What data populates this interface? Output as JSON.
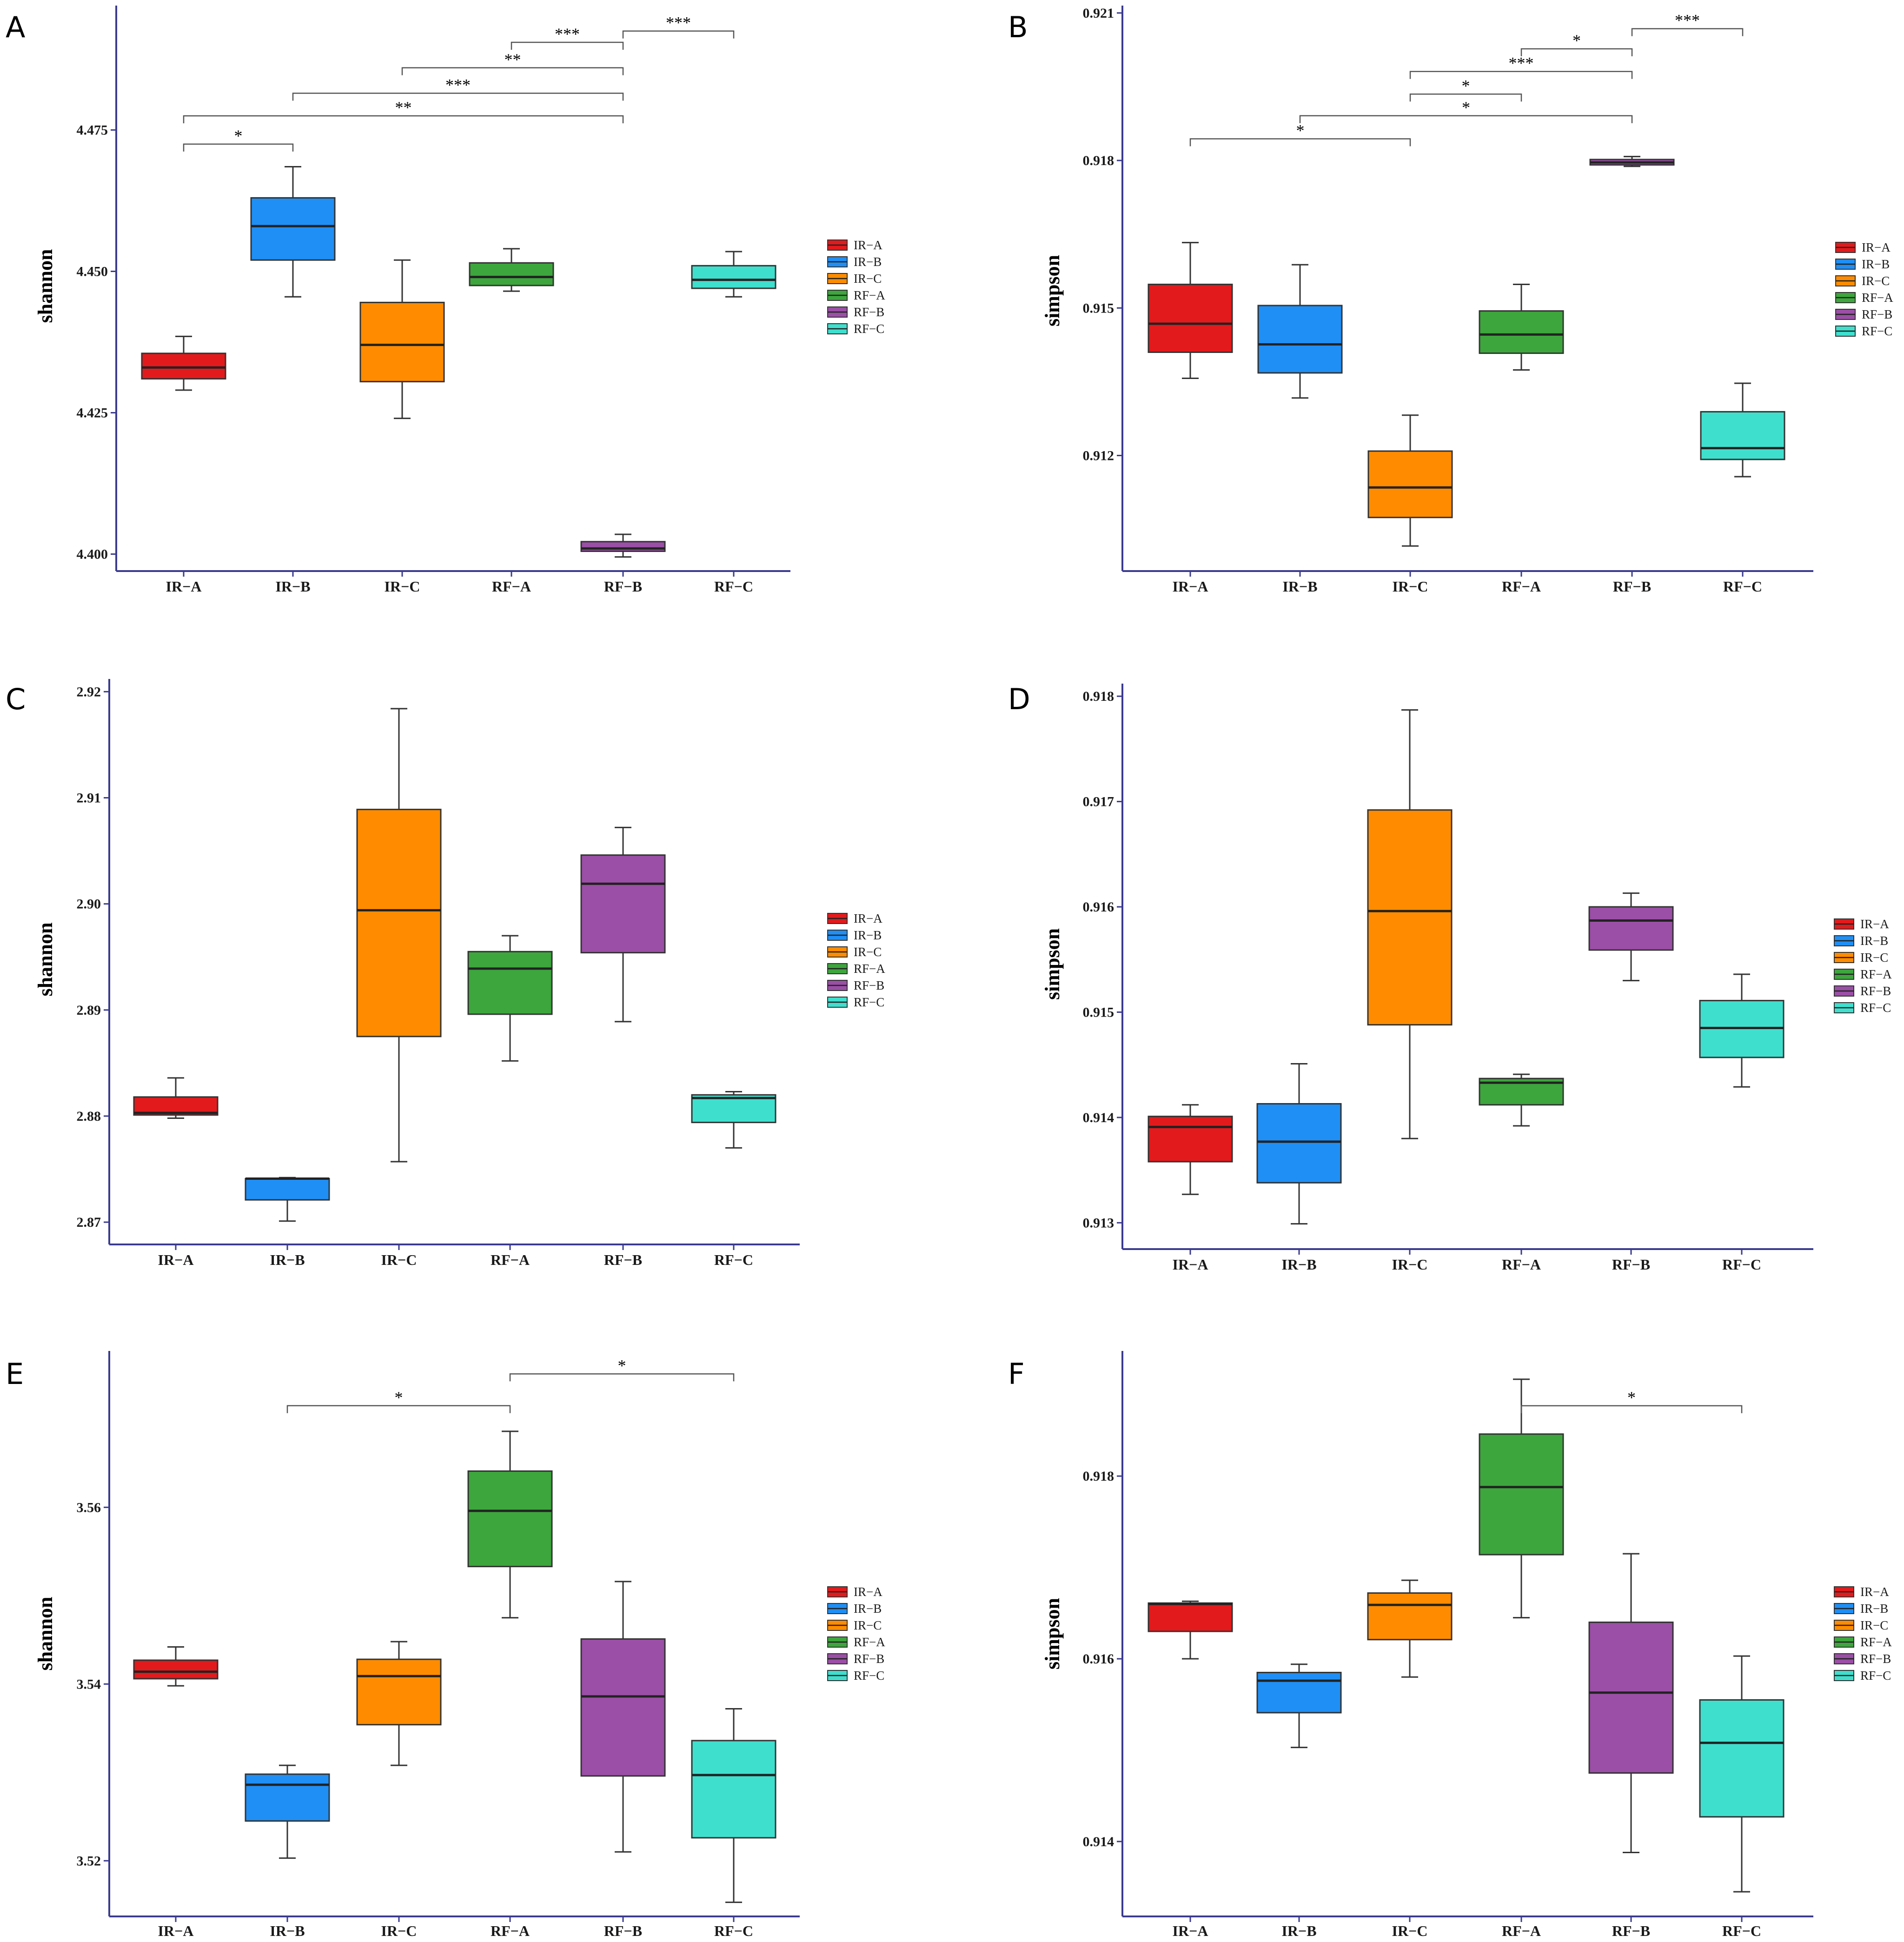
{
  "chart_data": [
    {
      "type": "box",
      "panel": "A",
      "ylabel": "shannon",
      "categories": [
        "IR−A",
        "IR−B",
        "IR−C",
        "RF−A",
        "RF−B",
        "RF−C"
      ],
      "colors": [
        "#e31a1c",
        "#1f8ff5",
        "#ff8c00",
        "#3da63d",
        "#9b4fa6",
        "#3fdfce"
      ],
      "ylim": [
        4.397,
        4.497
      ],
      "yticks": [
        4.4,
        4.425,
        4.45,
        4.475
      ],
      "ytick_labels": [
        "4.400",
        "4.425",
        "4.450",
        "4.475"
      ],
      "boxes": [
        {
          "whisker_low": 4.429,
          "q1": 4.431,
          "median": 4.433,
          "q3": 4.4355,
          "whisker_high": 4.4385
        },
        {
          "whisker_low": 4.4455,
          "q1": 4.452,
          "median": 4.458,
          "q3": 4.463,
          "whisker_high": 4.4685
        },
        {
          "whisker_low": 4.424,
          "q1": 4.4305,
          "median": 4.437,
          "q3": 4.4445,
          "whisker_high": 4.452
        },
        {
          "whisker_low": 4.4465,
          "q1": 4.4475,
          "median": 4.449,
          "q3": 4.4515,
          "whisker_high": 4.454
        },
        {
          "whisker_low": 4.3995,
          "q1": 4.4005,
          "median": 4.401,
          "q3": 4.4022,
          "whisker_high": 4.4035
        },
        {
          "whisker_low": 4.4455,
          "q1": 4.447,
          "median": 4.4485,
          "q3": 4.451,
          "whisker_high": 4.4535
        }
      ],
      "significance": [
        {
          "from": 0,
          "to": 1,
          "label": "*",
          "y": 4.4725
        },
        {
          "from": 0,
          "to": 4,
          "label": "**",
          "y": 4.4775
        },
        {
          "from": 1,
          "to": 4,
          "label": "***",
          "y": 4.4815
        },
        {
          "from": 2,
          "to": 4,
          "label": "**",
          "y": 4.486
        },
        {
          "from": 3,
          "to": 4,
          "label": "***",
          "y": 4.4905
        },
        {
          "from": 4,
          "to": 5,
          "label": "***",
          "y": 4.4925
        }
      ],
      "legend": [
        "IR−A",
        "IR−B",
        "IR−C",
        "RF−A",
        "RF−B",
        "RF−C"
      ]
    },
    {
      "type": "box",
      "panel": "B",
      "ylabel": "simpson",
      "categories": [
        "IR−A",
        "IR−B",
        "IR−C",
        "RF−A",
        "RF−B",
        "RF−C"
      ],
      "colors": [
        "#e31a1c",
        "#1f8ff5",
        "#ff8c00",
        "#3da63d",
        "#9b4fa6",
        "#3fdfce"
      ],
      "ylim": [
        0.90965,
        0.92115
      ],
      "yticks": [
        0.912,
        0.915,
        0.918,
        0.921
      ],
      "ytick_labels": [
        "0.912",
        "0.915",
        "0.918",
        "0.921"
      ],
      "boxes": [
        {
          "whisker_low": 0.91357,
          "q1": 0.9141,
          "median": 0.91468,
          "q3": 0.91548,
          "whisker_high": 0.91633
        },
        {
          "whisker_low": 0.91317,
          "q1": 0.91368,
          "median": 0.91426,
          "q3": 0.91505,
          "whisker_high": 0.91588
        },
        {
          "whisker_low": 0.91016,
          "q1": 0.91074,
          "median": 0.91135,
          "q3": 0.91209,
          "whisker_high": 0.91282
        },
        {
          "whisker_low": 0.91374,
          "q1": 0.91408,
          "median": 0.91446,
          "q3": 0.91494,
          "whisker_high": 0.91548
        },
        {
          "whisker_low": 0.91788,
          "q1": 0.91791,
          "median": 0.91796,
          "q3": 0.91802,
          "whisker_high": 0.91808
        },
        {
          "whisker_low": 0.91157,
          "q1": 0.91192,
          "median": 0.91215,
          "q3": 0.91289,
          "whisker_high": 0.91347
        }
      ],
      "significance": [
        {
          "from": 0,
          "to": 2,
          "label": "*",
          "y": 0.91844
        },
        {
          "from": 1,
          "to": 4,
          "label": "*",
          "y": 0.91891
        },
        {
          "from": 2,
          "to": 3,
          "label": "*",
          "y": 0.91935
        },
        {
          "from": 2,
          "to": 4,
          "label": "***",
          "y": 0.91981
        },
        {
          "from": 3,
          "to": 4,
          "label": "*",
          "y": 0.92027
        },
        {
          "from": 4,
          "to": 5,
          "label": "***",
          "y": 0.92068
        }
      ],
      "legend": [
        "IR−A",
        "IR−B",
        "IR−C",
        "RF−A",
        "RF−B",
        "RF−C"
      ]
    },
    {
      "type": "box",
      "panel": "C",
      "ylabel": "shannon",
      "categories": [
        "IR−A",
        "IR−B",
        "IR−C",
        "RF−A",
        "RF−B",
        "RF−C"
      ],
      "colors": [
        "#e31a1c",
        "#1f8ff5",
        "#ff8c00",
        "#3da63d",
        "#9b4fa6",
        "#3fdfce"
      ],
      "ylim": [
        2.8679,
        2.9212
      ],
      "yticks": [
        2.87,
        2.88,
        2.89,
        2.9,
        2.91,
        2.92
      ],
      "ytick_labels": [
        "2.87",
        "2.88",
        "2.89",
        "2.90",
        "2.91",
        "2.92"
      ],
      "boxes": [
        {
          "whisker_low": 2.8798,
          "q1": 2.8801,
          "median": 2.8803,
          "q3": 2.8818,
          "whisker_high": 2.8836
        },
        {
          "whisker_low": 2.8701,
          "q1": 2.8721,
          "median": 2.8741,
          "q3": 2.8741,
          "whisker_high": 2.8742
        },
        {
          "whisker_low": 2.8757,
          "q1": 2.8875,
          "median": 2.8994,
          "q3": 2.9089,
          "whisker_high": 2.9184
        },
        {
          "whisker_low": 2.8852,
          "q1": 2.8896,
          "median": 2.8939,
          "q3": 2.8955,
          "whisker_high": 2.897
        },
        {
          "whisker_low": 2.8889,
          "q1": 2.8954,
          "median": 2.9019,
          "q3": 2.9046,
          "whisker_high": 2.9072
        },
        {
          "whisker_low": 2.877,
          "q1": 2.8794,
          "median": 2.8817,
          "q3": 2.882,
          "whisker_high": 2.8823
        }
      ],
      "significance": [],
      "legend": [
        "IR−A",
        "IR−B",
        "IR−C",
        "RF−A",
        "RF−B",
        "RF−C"
      ]
    },
    {
      "type": "box",
      "panel": "D",
      "ylabel": "simpson",
      "categories": [
        "IR−A",
        "IR−B",
        "IR−C",
        "RF−A",
        "RF−B",
        "RF−C"
      ],
      "colors": [
        "#e31a1c",
        "#1f8ff5",
        "#ff8c00",
        "#3da63d",
        "#9b4fa6",
        "#3fdfce"
      ],
      "ylim": [
        0.91275,
        0.91812
      ],
      "yticks": [
        0.913,
        0.914,
        0.915,
        0.916,
        0.917,
        0.918
      ],
      "ytick_labels": [
        "0.913",
        "0.914",
        "0.915",
        "0.916",
        "0.917",
        "0.918"
      ],
      "boxes": [
        {
          "whisker_low": 0.91327,
          "q1": 0.91358,
          "median": 0.91391,
          "q3": 0.91401,
          "whisker_high": 0.91412
        },
        {
          "whisker_low": 0.91299,
          "q1": 0.91338,
          "median": 0.91377,
          "q3": 0.91413,
          "whisker_high": 0.91451
        },
        {
          "whisker_low": 0.9138,
          "q1": 0.91488,
          "median": 0.91596,
          "q3": 0.91692,
          "whisker_high": 0.91787
        },
        {
          "whisker_low": 0.91392,
          "q1": 0.91412,
          "median": 0.91433,
          "q3": 0.91437,
          "whisker_high": 0.91441
        },
        {
          "whisker_low": 0.9153,
          "q1": 0.91559,
          "median": 0.91587,
          "q3": 0.916,
          "whisker_high": 0.91613
        },
        {
          "whisker_low": 0.91429,
          "q1": 0.91457,
          "median": 0.91485,
          "q3": 0.91511,
          "whisker_high": 0.91536
        }
      ],
      "significance": [],
      "legend": [
        "IR−A",
        "IR−B",
        "IR−C",
        "RF−A",
        "RF−B",
        "RF−C"
      ]
    },
    {
      "type": "box",
      "panel": "E",
      "ylabel": "shannon",
      "categories": [
        "IR−A",
        "IR−B",
        "IR−C",
        "RF−A",
        "RF−B",
        "RF−C"
      ],
      "colors": [
        "#e31a1c",
        "#1f8ff5",
        "#ff8c00",
        "#3da63d",
        "#9b4fa6",
        "#3fdfce"
      ],
      "ylim": [
        3.5137,
        3.5777
      ],
      "yticks": [
        3.52,
        3.54,
        3.56
      ],
      "ytick_labels": [
        "3.52",
        "3.54",
        "3.56"
      ],
      "boxes": [
        {
          "whisker_low": 3.5398,
          "q1": 3.5406,
          "median": 3.5414,
          "q3": 3.5427,
          "whisker_high": 3.5442
        },
        {
          "whisker_low": 3.5203,
          "q1": 3.5245,
          "median": 3.5286,
          "q3": 3.5298,
          "whisker_high": 3.5308
        },
        {
          "whisker_low": 3.5308,
          "q1": 3.5354,
          "median": 3.5409,
          "q3": 3.5428,
          "whisker_high": 3.5448
        },
        {
          "whisker_low": 3.5475,
          "q1": 3.5533,
          "median": 3.5596,
          "q3": 3.5641,
          "whisker_high": 3.5686
        },
        {
          "whisker_low": 3.521,
          "q1": 3.5296,
          "median": 3.5386,
          "q3": 3.5451,
          "whisker_high": 3.5516
        },
        {
          "whisker_low": 3.5153,
          "q1": 3.5226,
          "median": 3.5297,
          "q3": 3.5336,
          "whisker_high": 3.5372
        }
      ],
      "significance": [
        {
          "from": 1,
          "to": 3,
          "label": "*",
          "y": 3.5715
        },
        {
          "from": 3,
          "to": 5,
          "label": "*",
          "y": 3.5751
        }
      ],
      "legend": [
        "IR−A",
        "IR−B",
        "IR−C",
        "RF−A",
        "RF−B",
        "RF−C"
      ]
    },
    {
      "type": "box",
      "panel": "F",
      "ylabel": "simpson",
      "categories": [
        "IR−A",
        "IR−B",
        "IR−C",
        "RF−A",
        "RF−B",
        "RF−C"
      ],
      "colors": [
        "#e31a1c",
        "#1f8ff5",
        "#ff8c00",
        "#3da63d",
        "#9b4fa6",
        "#3fdfce"
      ],
      "ylim": [
        0.91318,
        0.91937
      ],
      "yticks": [
        0.914,
        0.916,
        0.918
      ],
      "ytick_labels": [
        "0.914",
        "0.916",
        "0.918"
      ],
      "boxes": [
        {
          "whisker_low": 0.916,
          "q1": 0.9163,
          "median": 0.9166,
          "q3": 0.91661,
          "whisker_high": 0.91663
        },
        {
          "whisker_low": 0.91503,
          "q1": 0.91541,
          "median": 0.91576,
          "q3": 0.91585,
          "whisker_high": 0.91594
        },
        {
          "whisker_low": 0.9158,
          "q1": 0.91621,
          "median": 0.91659,
          "q3": 0.91672,
          "whisker_high": 0.91686
        },
        {
          "whisker_low": 0.91645,
          "q1": 0.91714,
          "median": 0.91788,
          "q3": 0.91846,
          "whisker_high": 0.91906
        },
        {
          "whisker_low": 0.91388,
          "q1": 0.91475,
          "median": 0.91563,
          "q3": 0.9164,
          "whisker_high": 0.91715
        },
        {
          "whisker_low": 0.91345,
          "q1": 0.91427,
          "median": 0.91508,
          "q3": 0.91555,
          "whisker_high": 0.91603
        }
      ],
      "significance": [
        {
          "from": 3,
          "to": 5,
          "label": "*",
          "y": 0.91877
        }
      ],
      "legend": [
        "IR−A",
        "IR−B",
        "IR−C",
        "RF−A",
        "RF−B",
        "RF−C"
      ]
    }
  ]
}
